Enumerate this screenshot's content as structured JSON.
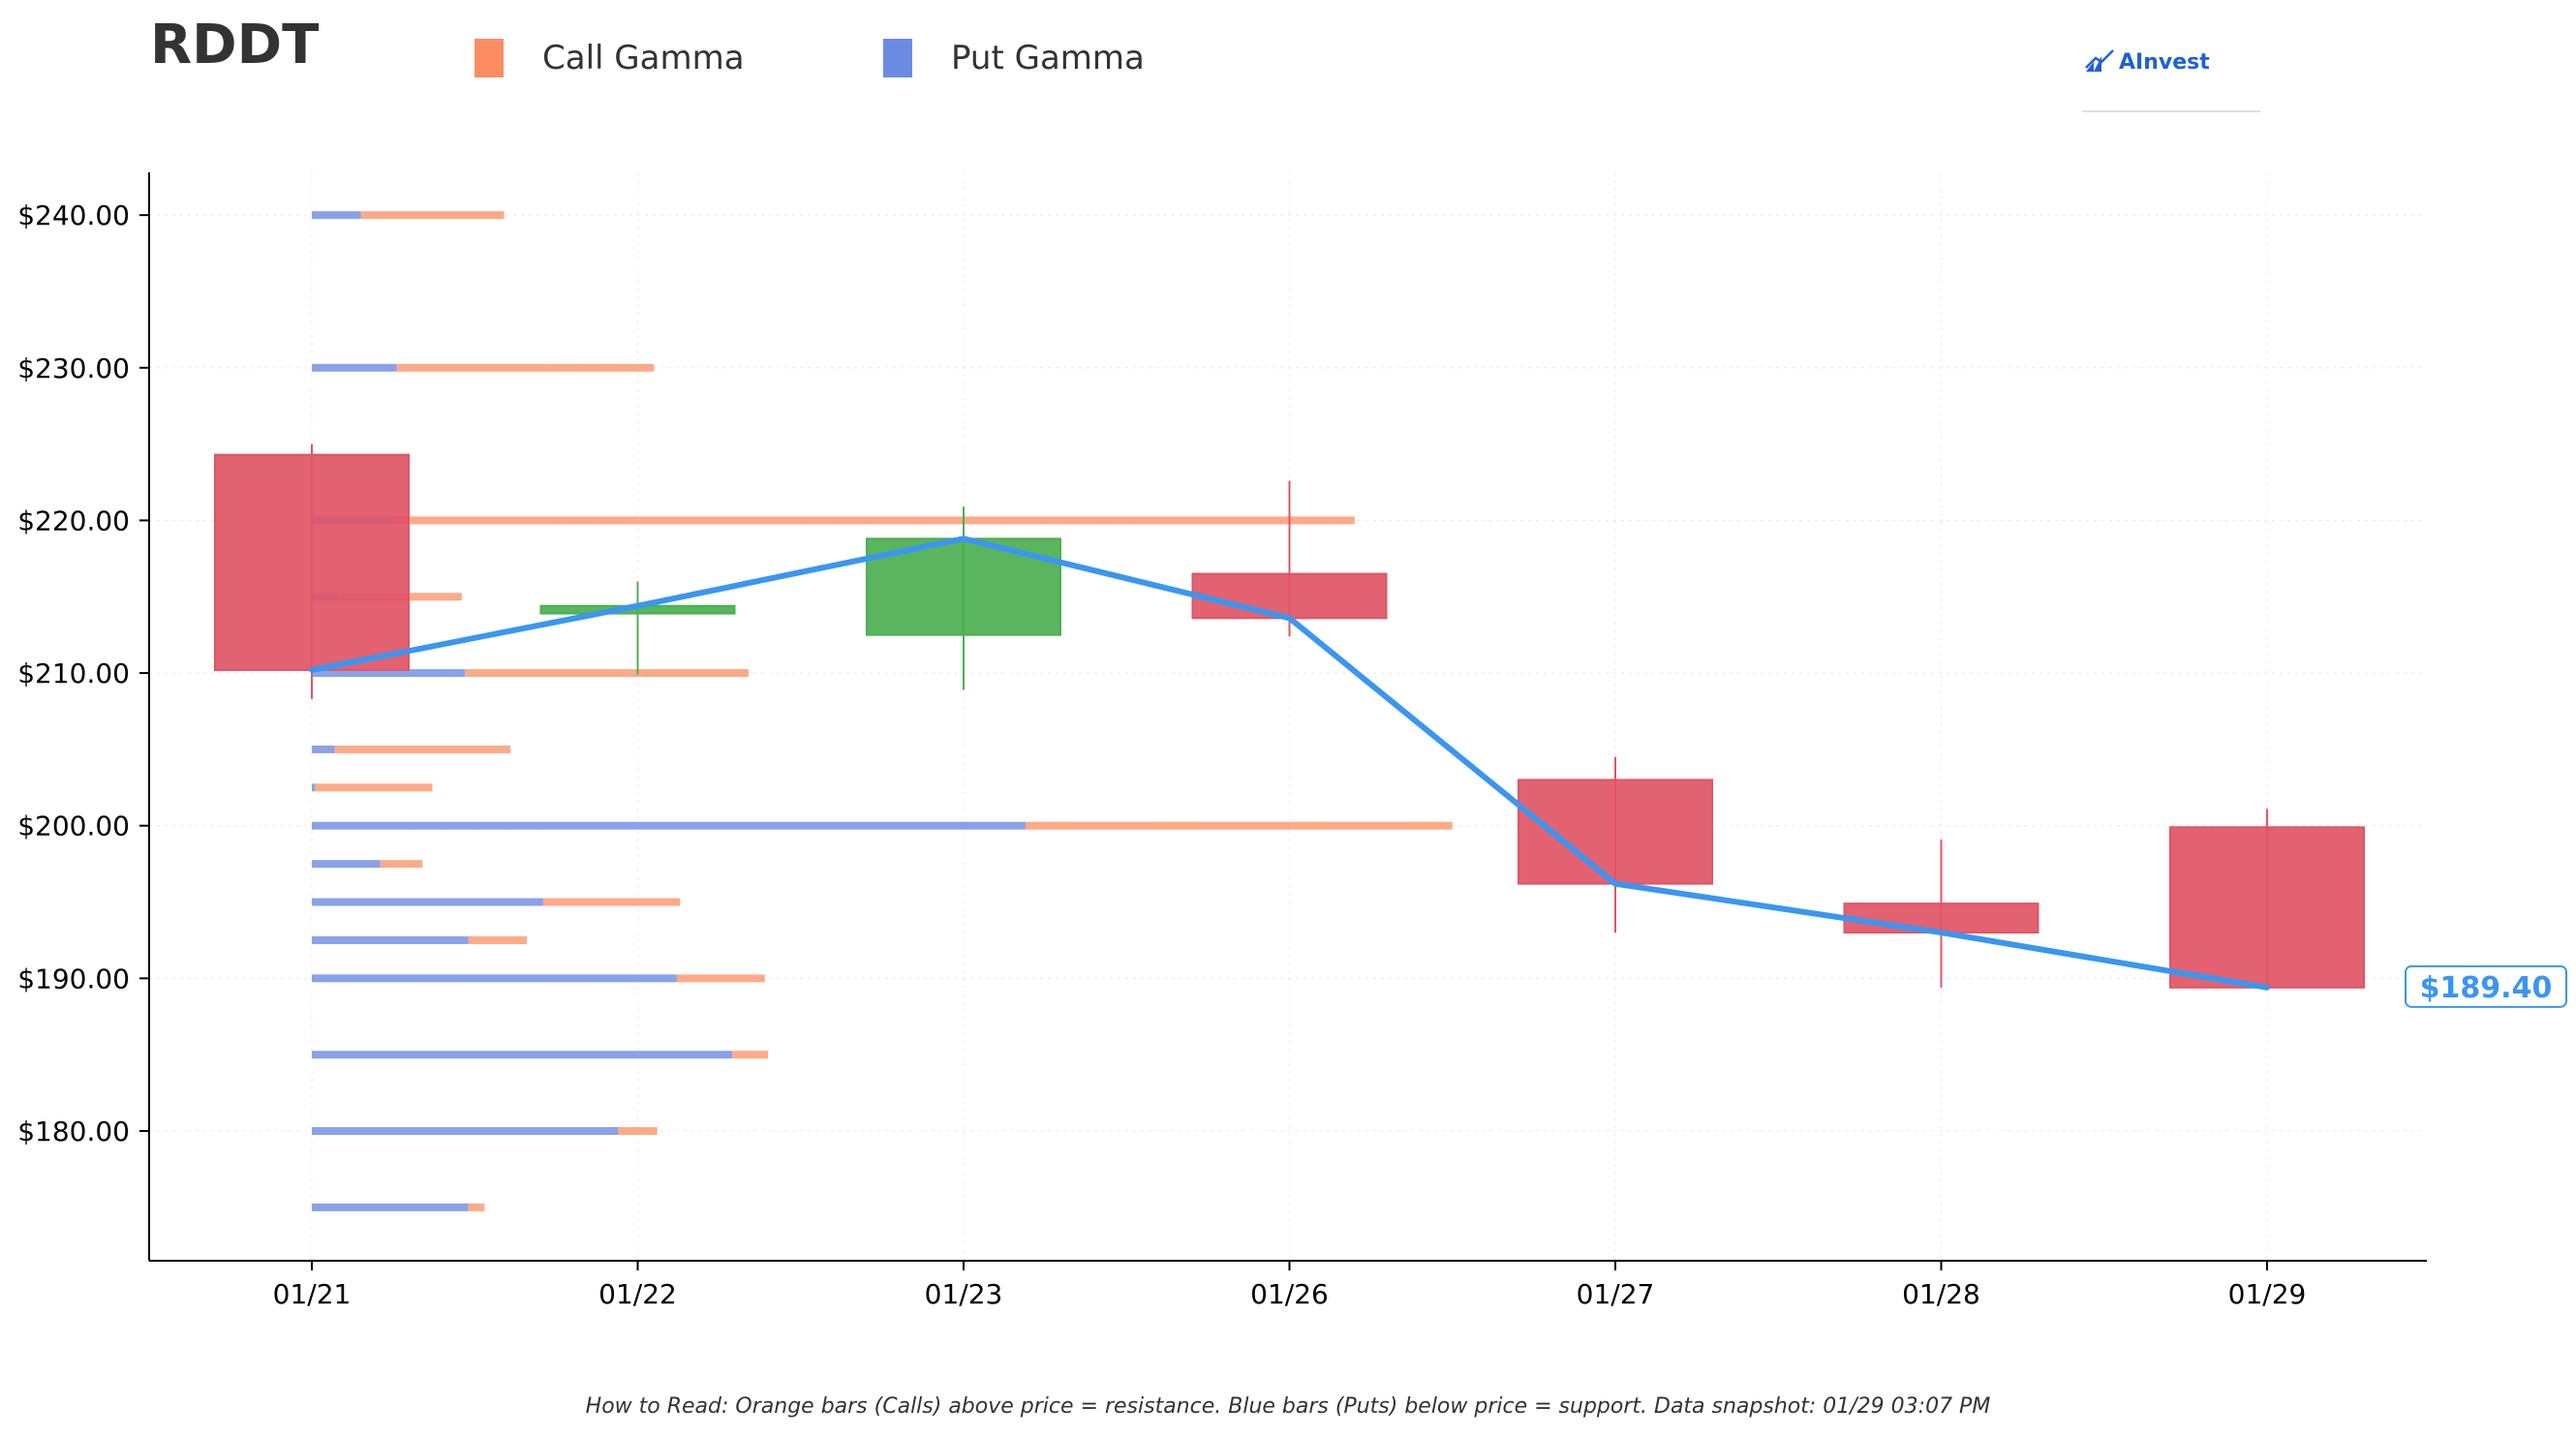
{
  "ticker": "RDDT",
  "legend": [
    {
      "label": "Call Gamma",
      "color": "#fc8d62"
    },
    {
      "label": "Put Gamma",
      "color": "#6b8be3"
    }
  ],
  "logo": {
    "text": "AInvest",
    "icon": "ainvest-logo-icon"
  },
  "footnote": "How to Read: Orange bars (Calls) above price = resistance. Blue bars (Puts) below price = support. Data snapshot: 01/29 03:07 PM",
  "chart_data": {
    "type": "candlestick",
    "title": "RDDT",
    "ylim": [
      171.5,
      242.8
    ],
    "yticks": [
      180,
      190,
      200,
      210,
      220,
      230,
      240
    ],
    "ytick_labels": [
      "$180.00",
      "$190.00",
      "$200.00",
      "$210.00",
      "$220.00",
      "$230.00",
      "$240.00"
    ],
    "grid": true,
    "legend_position": "top",
    "colors": {
      "up": "#4caf50",
      "down": "#e05566",
      "line": "#3a96f0",
      "call": "#fc8d62",
      "put": "#6b8be3"
    },
    "candles": [
      {
        "date": "01/21",
        "open": 224.3,
        "high": 225.0,
        "low": 208.3,
        "close": 210.2
      },
      {
        "date": "01/22",
        "open": 213.9,
        "high": 216.0,
        "low": 209.9,
        "close": 214.4
      },
      {
        "date": "01/23",
        "open": 212.5,
        "high": 220.9,
        "low": 208.9,
        "close": 218.8
      },
      {
        "date": "01/26",
        "open": 216.5,
        "high": 222.6,
        "low": 212.4,
        "close": 213.6
      },
      {
        "date": "01/27",
        "open": 203.0,
        "high": 204.5,
        "low": 193.0,
        "close": 196.2
      },
      {
        "date": "01/28",
        "open": 194.9,
        "high": 199.1,
        "low": 189.4,
        "close": 193.0
      },
      {
        "date": "01/29",
        "open": 199.9,
        "high": 201.1,
        "low": 189.3,
        "close": 189.4
      }
    ],
    "price_line": {
      "dates": [
        "01/21",
        "01/22",
        "01/23",
        "01/26",
        "01/27",
        "01/28",
        "01/29"
      ],
      "values": [
        210.2,
        214.4,
        218.8,
        213.6,
        196.2,
        193.0,
        189.4
      ]
    },
    "last_price_label": "$189.40",
    "gamma_bars": {
      "x_unit": "date-index",
      "levels": [
        {
          "strike": 240.0,
          "put": 0.15,
          "call": 0.44
        },
        {
          "strike": 230.0,
          "put": 0.26,
          "call": 0.79
        },
        {
          "strike": 220.0,
          "put": 0.25,
          "call": 2.95
        },
        {
          "strike": 215.0,
          "put": 0.08,
          "call": 0.38
        },
        {
          "strike": 210.0,
          "put": 0.47,
          "call": 0.87
        },
        {
          "strike": 205.0,
          "put": 0.07,
          "call": 0.54
        },
        {
          "strike": 202.5,
          "put": 0.01,
          "call": 0.36
        },
        {
          "strike": 200.0,
          "put": 2.19,
          "call": 1.31
        },
        {
          "strike": 197.5,
          "put": 0.21,
          "call": 0.13
        },
        {
          "strike": 195.0,
          "put": 0.71,
          "call": 0.42
        },
        {
          "strike": 192.5,
          "put": 0.48,
          "call": 0.18
        },
        {
          "strike": 190.0,
          "put": 1.12,
          "call": 0.27
        },
        {
          "strike": 185.0,
          "put": 1.29,
          "call": 0.11
        },
        {
          "strike": 180.0,
          "put": 0.94,
          "call": 0.12
        },
        {
          "strike": 175.0,
          "put": 0.48,
          "call": 0.05
        }
      ]
    }
  }
}
